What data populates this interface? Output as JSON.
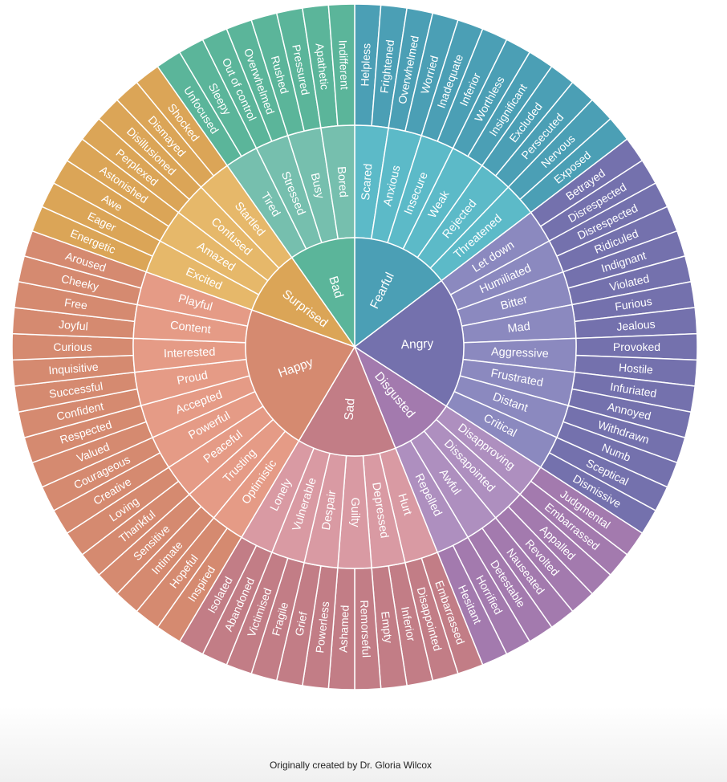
{
  "caption": "Originally created by Dr. Gloria Wilcox",
  "wheel": [
    {
      "label": "Fearful",
      "colors": {
        "core": "#4b9fb5",
        "middle": "#5cbac8",
        "outer": "#4b9fb5"
      },
      "children": [
        {
          "label": "Scared",
          "children": [
            "Helpless",
            "Frightened"
          ]
        },
        {
          "label": "Anxious",
          "children": [
            "Overwhelmed",
            "Worried"
          ]
        },
        {
          "label": "Insecure",
          "children": [
            "Inadequate",
            "Inferior"
          ]
        },
        {
          "label": "Weak",
          "children": [
            "Worthless",
            "Insignificant"
          ]
        },
        {
          "label": "Rejected",
          "children": [
            "Excluded",
            "Persecuted"
          ]
        },
        {
          "label": "Threatened",
          "children": [
            "Nervous",
            "Exposed"
          ]
        }
      ]
    },
    {
      "label": "Angry",
      "colors": {
        "core": "#7471ad",
        "middle": "#8b89bf",
        "outer": "#7471ad"
      },
      "children": [
        {
          "label": "Let down",
          "children": [
            "Betrayed",
            "Disrespected"
          ]
        },
        {
          "label": "Humiliated",
          "children": [
            "Disrespected",
            "Ridiculed"
          ]
        },
        {
          "label": "Bitter",
          "children": [
            "Indignant",
            "Violated"
          ]
        },
        {
          "label": "Mad",
          "children": [
            "Furious",
            "Jealous"
          ]
        },
        {
          "label": "Aggressive",
          "children": [
            "Provoked",
            "Hostile"
          ]
        },
        {
          "label": "Frustrated",
          "children": [
            "Infuriated",
            "Annoyed"
          ]
        },
        {
          "label": "Distant",
          "children": [
            "Withdrawn",
            "Numb"
          ]
        },
        {
          "label": "Critical",
          "children": [
            "Sceptical",
            "Dismissive"
          ]
        }
      ]
    },
    {
      "label": "Disgusted",
      "colors": {
        "core": "#a37aae",
        "middle": "#ae8fbf",
        "outer": "#a37aae"
      },
      "children": [
        {
          "label": "Disapproving",
          "children": [
            "Judgmental",
            "Embarrassed"
          ]
        },
        {
          "label": "Dissapointed",
          "children": [
            "Appalled",
            "Revolted"
          ]
        },
        {
          "label": "Awful",
          "children": [
            "Nauseated",
            "Detestable"
          ]
        },
        {
          "label": "Repelled",
          "children": [
            "Horrified",
            "Hesitant"
          ]
        }
      ]
    },
    {
      "label": "Sad",
      "colors": {
        "core": "#c27d86",
        "middle": "#d99aa3",
        "outer": "#c27d86"
      },
      "children": [
        {
          "label": "Hurt",
          "children": [
            "Embarrassed",
            "Disappointed"
          ]
        },
        {
          "label": "Depressed",
          "children": [
            "Inferior",
            "Empty"
          ]
        },
        {
          "label": "Guilty",
          "children": [
            "Remorseful",
            "Ashamed"
          ]
        },
        {
          "label": "Despair",
          "children": [
            "Powerless",
            "Grief"
          ]
        },
        {
          "label": "Vulnerable",
          "children": [
            "Fragile",
            "Victimised"
          ]
        },
        {
          "label": "Lonely",
          "children": [
            "Abandoned",
            "Isolated"
          ]
        }
      ]
    },
    {
      "label": "Happy",
      "colors": {
        "core": "#d58a70",
        "middle": "#e59b86",
        "outer": "#d58a70"
      },
      "children": [
        {
          "label": "Optimistic",
          "children": [
            "Inspired",
            "Hopeful"
          ]
        },
        {
          "label": "Trusting",
          "children": [
            "Intimate",
            "Sensitive"
          ]
        },
        {
          "label": "Peaceful",
          "children": [
            "Thankful",
            "Loving"
          ]
        },
        {
          "label": "Powerful",
          "children": [
            "Creative",
            "Courageous"
          ]
        },
        {
          "label": "Accepted",
          "children": [
            "Valued",
            "Respected"
          ]
        },
        {
          "label": "Proud",
          "children": [
            "Confident",
            "Successful"
          ]
        },
        {
          "label": "Interested",
          "children": [
            "Inquisitive",
            "Curious"
          ]
        },
        {
          "label": "Content",
          "children": [
            "Joyful",
            "Free"
          ]
        },
        {
          "label": "Playful",
          "children": [
            "Cheeky",
            "Aroused"
          ]
        }
      ]
    },
    {
      "label": "Surprised",
      "colors": {
        "core": "#dba557",
        "middle": "#e6b86a",
        "outer": "#dba557"
      },
      "children": [
        {
          "label": "Excited",
          "children": [
            "Energetic",
            "Eager"
          ]
        },
        {
          "label": "Amazed",
          "children": [
            "Awe",
            "Astonished"
          ]
        },
        {
          "label": "Confused",
          "children": [
            "Perplexed",
            "Disillusioned"
          ]
        },
        {
          "label": "Startled",
          "children": [
            "Dismayed",
            "Shocked"
          ]
        }
      ]
    },
    {
      "label": "Bad",
      "colors": {
        "core": "#5bb59a",
        "middle": "#76bfae",
        "outer": "#5bb59a"
      },
      "children": [
        {
          "label": "Tired",
          "children": [
            "Unfocused",
            "Sleepy"
          ]
        },
        {
          "label": "Stressed",
          "children": [
            "Out of control",
            "Overwhelmed"
          ]
        },
        {
          "label": "Busy",
          "children": [
            "Rushed",
            "Pressured"
          ]
        },
        {
          "label": "Bored",
          "children": [
            "Apathetic",
            "Indifferent"
          ]
        }
      ]
    }
  ]
}
